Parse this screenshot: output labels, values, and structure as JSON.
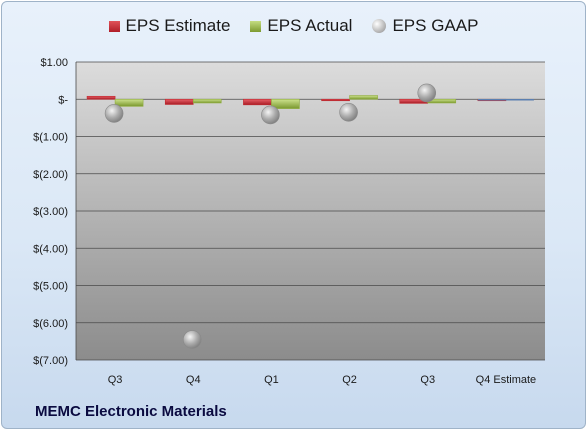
{
  "legend": {
    "estimate": "EPS Estimate",
    "actual": "EPS Actual",
    "gaap": "EPS GAAP"
  },
  "company": "MEMC Electronic Materials",
  "colors": {
    "estimate": "#c0282f",
    "actual": "#8fad3c",
    "gaap": "#a8a8a8"
  },
  "chart_data": {
    "type": "bar",
    "categories": [
      "Q3",
      "Q4",
      "Q1",
      "Q2",
      "Q3",
      "Q4 Estimate"
    ],
    "series": [
      {
        "name": "EPS Estimate",
        "values": [
          0.08,
          -0.14,
          -0.15,
          -0.02,
          -0.11,
          -0.03
        ]
      },
      {
        "name": "EPS Actual",
        "values": [
          -0.19,
          -0.1,
          -0.25,
          0.1,
          -0.1,
          null
        ]
      },
      {
        "name": "EPS GAAP",
        "values": [
          -0.38,
          -6.45,
          -0.42,
          -0.35,
          0.17,
          null
        ]
      }
    ],
    "yticks": [
      "$1.00",
      "$-",
      "$(1.00)",
      "$(2.00)",
      "$(3.00)",
      "$(4.00)",
      "$(5.00)",
      "$(6.00)",
      "$(7.00)"
    ],
    "ylim": [
      -7,
      1
    ],
    "grid": true,
    "legend_position": "top"
  }
}
